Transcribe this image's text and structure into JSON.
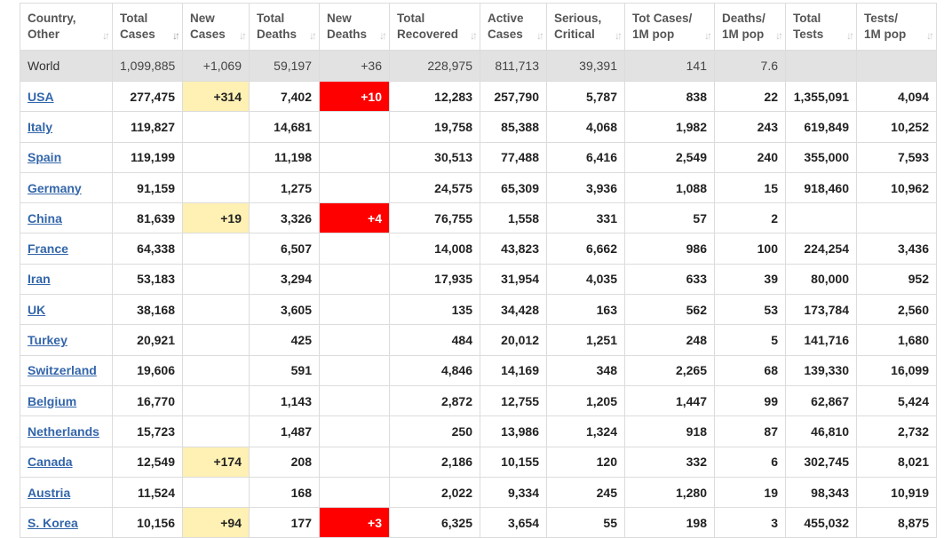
{
  "columns": [
    {
      "l1": "Country,",
      "l2": "Other"
    },
    {
      "l1": "Total",
      "l2": "Cases"
    },
    {
      "l1": "New",
      "l2": "Cases"
    },
    {
      "l1": "Total",
      "l2": "Deaths"
    },
    {
      "l1": "New",
      "l2": "Deaths"
    },
    {
      "l1": "Total",
      "l2": "Recovered"
    },
    {
      "l1": "Active",
      "l2": "Cases"
    },
    {
      "l1": "Serious,",
      "l2": "Critical"
    },
    {
      "l1": "Tot Cases/",
      "l2": "1M pop"
    },
    {
      "l1": "Deaths/",
      "l2": "1M pop"
    },
    {
      "l1": "Total",
      "l2": "Tests"
    },
    {
      "l1": "Tests/",
      "l2": "1M pop"
    }
  ],
  "world": [
    "World",
    "1,099,885",
    "+1,069",
    "59,197",
    "+36",
    "228,975",
    "811,713",
    "39,391",
    "141",
    "7.6",
    "",
    ""
  ],
  "rows": [
    [
      "USA",
      "277,475",
      "+314",
      "7,402",
      "+10",
      "12,283",
      "257,790",
      "5,787",
      "838",
      "22",
      "1,355,091",
      "4,094"
    ],
    [
      "Italy",
      "119,827",
      "",
      "14,681",
      "",
      "19,758",
      "85,388",
      "4,068",
      "1,982",
      "243",
      "619,849",
      "10,252"
    ],
    [
      "Spain",
      "119,199",
      "",
      "11,198",
      "",
      "30,513",
      "77,488",
      "6,416",
      "2,549",
      "240",
      "355,000",
      "7,593"
    ],
    [
      "Germany",
      "91,159",
      "",
      "1,275",
      "",
      "24,575",
      "65,309",
      "3,936",
      "1,088",
      "15",
      "918,460",
      "10,962"
    ],
    [
      "China",
      "81,639",
      "+19",
      "3,326",
      "+4",
      "76,755",
      "1,558",
      "331",
      "57",
      "2",
      "",
      ""
    ],
    [
      "France",
      "64,338",
      "",
      "6,507",
      "",
      "14,008",
      "43,823",
      "6,662",
      "986",
      "100",
      "224,254",
      "3,436"
    ],
    [
      "Iran",
      "53,183",
      "",
      "3,294",
      "",
      "17,935",
      "31,954",
      "4,035",
      "633",
      "39",
      "80,000",
      "952"
    ],
    [
      "UK",
      "38,168",
      "",
      "3,605",
      "",
      "135",
      "34,428",
      "163",
      "562",
      "53",
      "173,784",
      "2,560"
    ],
    [
      "Turkey",
      "20,921",
      "",
      "425",
      "",
      "484",
      "20,012",
      "1,251",
      "248",
      "5",
      "141,716",
      "1,680"
    ],
    [
      "Switzerland",
      "19,606",
      "",
      "591",
      "",
      "4,846",
      "14,169",
      "348",
      "2,265",
      "68",
      "139,330",
      "16,099"
    ],
    [
      "Belgium",
      "16,770",
      "",
      "1,143",
      "",
      "2,872",
      "12,755",
      "1,205",
      "1,447",
      "99",
      "62,867",
      "5,424"
    ],
    [
      "Netherlands",
      "15,723",
      "",
      "1,487",
      "",
      "250",
      "13,986",
      "1,324",
      "918",
      "87",
      "46,810",
      "2,732"
    ],
    [
      "Canada",
      "12,549",
      "+174",
      "208",
      "",
      "2,186",
      "10,155",
      "120",
      "332",
      "6",
      "302,745",
      "8,021"
    ],
    [
      "Austria",
      "11,524",
      "",
      "168",
      "",
      "2,022",
      "9,334",
      "245",
      "1,280",
      "19",
      "98,343",
      "10,919"
    ],
    [
      "S. Korea",
      "10,156",
      "+94",
      "177",
      "+3",
      "6,325",
      "3,654",
      "55",
      "198",
      "3",
      "455,032",
      "8,875"
    ]
  ],
  "colors": {
    "new_cases_highlight": "#fff0b3",
    "new_deaths_highlight": "#ff0000",
    "link": "#3366aa",
    "world_row": "#e2e2e2"
  },
  "sort_icon": "sort-arrows-icon",
  "active_sort_column_index": 1
}
